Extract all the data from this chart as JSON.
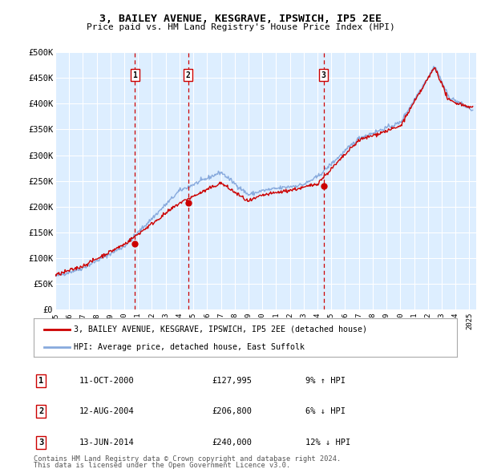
{
  "title": "3, BAILEY AVENUE, KESGRAVE, IPSWICH, IP5 2EE",
  "subtitle": "Price paid vs. HM Land Registry's House Price Index (HPI)",
  "ylim": [
    0,
    500000
  ],
  "yticks": [
    0,
    50000,
    100000,
    150000,
    200000,
    250000,
    300000,
    350000,
    400000,
    450000,
    500000
  ],
  "ytick_labels": [
    "£0",
    "£50K",
    "£100K",
    "£150K",
    "£200K",
    "£250K",
    "£300K",
    "£350K",
    "£400K",
    "£450K",
    "£500K"
  ],
  "xlim_start": 1995.0,
  "xlim_end": 2025.5,
  "plot_bg_color": "#ddeeff",
  "grid_color": "#ffffff",
  "hpi_color": "#88aadd",
  "price_color": "#cc0000",
  "transactions": [
    {
      "label": "1",
      "date": "11-OCT-2000",
      "price": 127995,
      "year": 2000.78,
      "hpi_pct": "9% ↑ HPI"
    },
    {
      "label": "2",
      "date": "12-AUG-2004",
      "price": 206800,
      "year": 2004.62,
      "hpi_pct": "6% ↓ HPI"
    },
    {
      "label": "3",
      "date": "13-JUN-2014",
      "price": 240000,
      "year": 2014.45,
      "hpi_pct": "12% ↓ HPI"
    }
  ],
  "legend_line1": "3, BAILEY AVENUE, KESGRAVE, IPSWICH, IP5 2EE (detached house)",
  "legend_line2": "HPI: Average price, detached house, East Suffolk",
  "footer1": "Contains HM Land Registry data © Crown copyright and database right 2024.",
  "footer2": "This data is licensed under the Open Government Licence v3.0."
}
